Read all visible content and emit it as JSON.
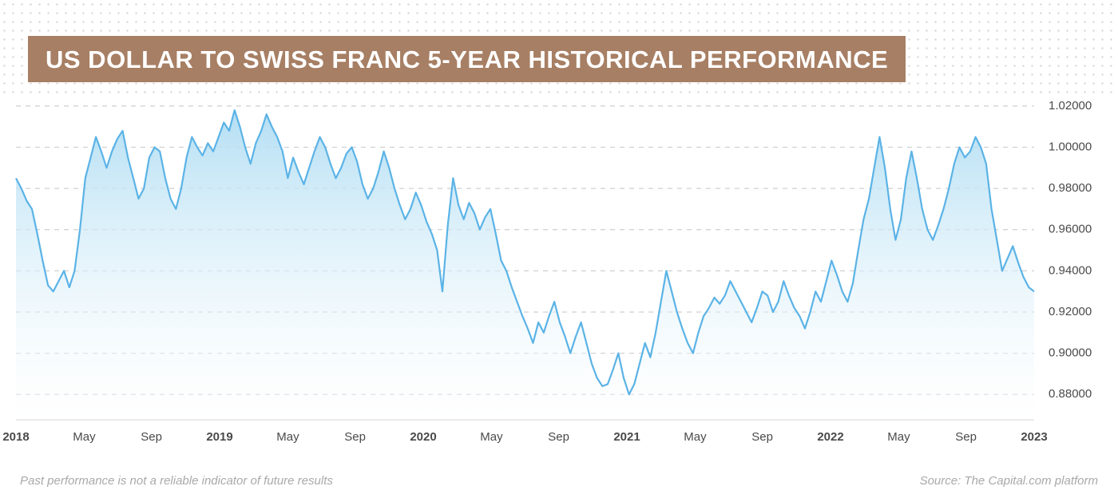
{
  "title": {
    "text": "US DOLLAR TO SWISS FRANC 5-YEAR HISTORICAL PERFORMANCE",
    "background": "#a77f64",
    "color": "#ffffff",
    "fontsize": 31
  },
  "footer": {
    "disclaimer": "Past performance is not a reliable indicator of future results",
    "source": "Source: The Capital.com platform",
    "color": "#a9a9a9"
  },
  "chart": {
    "type": "area",
    "background": "#ffffff",
    "grid_color": "#cfcfcf",
    "axis_label_color": "#4a4a4a",
    "line_color": "#5bb3e6",
    "fill_top_color": "#b0ddf3",
    "fill_bottom_color": "#ffffff",
    "line_width": 2.2,
    "ylim": [
      0.87,
      1.025
    ],
    "y_ticks": [
      0.88,
      0.9,
      0.92,
      0.94,
      0.96,
      0.98,
      1.0,
      1.02
    ],
    "y_tick_labels": [
      "0.88000",
      "0.90000",
      "0.92000",
      "0.94000",
      "0.96000",
      "0.98000",
      "1.00000",
      "1.02000"
    ],
    "y_label_fontsize": 15,
    "x_ticks": [
      {
        "pos": 0.0,
        "label": "2018",
        "bold": true
      },
      {
        "pos": 0.067,
        "label": "May",
        "bold": false
      },
      {
        "pos": 0.133,
        "label": "Sep",
        "bold": false
      },
      {
        "pos": 0.2,
        "label": "2019",
        "bold": true
      },
      {
        "pos": 0.267,
        "label": "May",
        "bold": false
      },
      {
        "pos": 0.333,
        "label": "Sep",
        "bold": false
      },
      {
        "pos": 0.4,
        "label": "2020",
        "bold": true
      },
      {
        "pos": 0.467,
        "label": "May",
        "bold": false
      },
      {
        "pos": 0.533,
        "label": "Sep",
        "bold": false
      },
      {
        "pos": 0.6,
        "label": "2021",
        "bold": true
      },
      {
        "pos": 0.667,
        "label": "May",
        "bold": false
      },
      {
        "pos": 0.733,
        "label": "Sep",
        "bold": false
      },
      {
        "pos": 0.8,
        "label": "2022",
        "bold": true
      },
      {
        "pos": 0.867,
        "label": "May",
        "bold": false
      },
      {
        "pos": 0.933,
        "label": "Sep",
        "bold": false
      },
      {
        "pos": 1.0,
        "label": "2023",
        "bold": true
      }
    ],
    "x_label_fontsize": 15,
    "series": [
      0.985,
      0.98,
      0.974,
      0.97,
      0.958,
      0.945,
      0.933,
      0.93,
      0.935,
      0.94,
      0.932,
      0.94,
      0.96,
      0.985,
      0.995,
      1.005,
      0.998,
      0.99,
      0.998,
      1.004,
      1.008,
      0.995,
      0.985,
      0.975,
      0.98,
      0.995,
      1.0,
      0.998,
      0.985,
      0.975,
      0.97,
      0.98,
      0.995,
      1.005,
      1.0,
      0.996,
      1.002,
      0.998,
      1.005,
      1.012,
      1.008,
      1.018,
      1.01,
      1.0,
      0.992,
      1.002,
      1.008,
      1.016,
      1.01,
      1.005,
      0.998,
      0.985,
      0.995,
      0.988,
      0.982,
      0.99,
      0.998,
      1.005,
      1.0,
      0.992,
      0.985,
      0.99,
      0.997,
      1.0,
      0.993,
      0.982,
      0.975,
      0.98,
      0.988,
      0.998,
      0.99,
      0.98,
      0.972,
      0.965,
      0.97,
      0.978,
      0.972,
      0.964,
      0.958,
      0.95,
      0.93,
      0.962,
      0.985,
      0.972,
      0.965,
      0.973,
      0.968,
      0.96,
      0.966,
      0.97,
      0.958,
      0.945,
      0.94,
      0.932,
      0.925,
      0.918,
      0.912,
      0.905,
      0.915,
      0.91,
      0.918,
      0.925,
      0.915,
      0.908,
      0.9,
      0.908,
      0.915,
      0.905,
      0.895,
      0.888,
      0.884,
      0.885,
      0.892,
      0.9,
      0.888,
      0.88,
      0.885,
      0.895,
      0.905,
      0.898,
      0.91,
      0.925,
      0.94,
      0.93,
      0.92,
      0.912,
      0.905,
      0.9,
      0.91,
      0.918,
      0.922,
      0.927,
      0.924,
      0.928,
      0.935,
      0.93,
      0.925,
      0.92,
      0.915,
      0.922,
      0.93,
      0.928,
      0.92,
      0.925,
      0.935,
      0.928,
      0.922,
      0.918,
      0.912,
      0.92,
      0.93,
      0.925,
      0.935,
      0.945,
      0.938,
      0.93,
      0.925,
      0.934,
      0.95,
      0.965,
      0.975,
      0.99,
      1.005,
      0.99,
      0.97,
      0.955,
      0.965,
      0.985,
      0.998,
      0.985,
      0.97,
      0.96,
      0.955,
      0.962,
      0.97,
      0.98,
      0.992,
      1.0,
      0.995,
      0.998,
      1.005,
      1.0,
      0.992,
      0.97,
      0.955,
      0.94,
      0.946,
      0.952,
      0.944,
      0.937,
      0.932,
      0.93
    ]
  }
}
